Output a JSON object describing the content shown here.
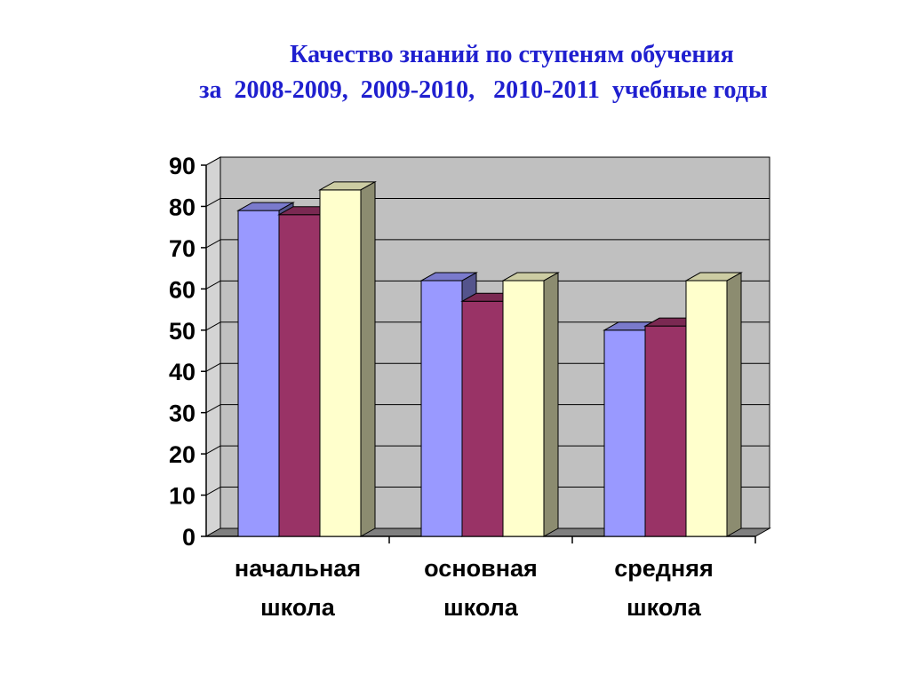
{
  "title": {
    "line1": "Качество знаний по ступеням обучения",
    "line2": "за  2008-2009,  2009-2010,   2010-2011  учебные годы"
  },
  "chart_data": {
    "type": "bar",
    "title": "Качество знаний по ступеням обучения за 2008-2009, 2009-2010, 2010-2011 учебные годы",
    "categories": [
      [
        "начальная",
        "школа"
      ],
      [
        "основная",
        "школа"
      ],
      [
        "средняя",
        "школа"
      ]
    ],
    "series": [
      {
        "values": [
          79,
          62,
          50
        ],
        "color": "#9999ff"
      },
      {
        "values": [
          78,
          57,
          51
        ],
        "color": "#993366"
      },
      {
        "values": [
          84,
          62,
          62
        ],
        "color": "#ffffcc"
      }
    ],
    "ylim": [
      0,
      90
    ],
    "yticks": [
      0,
      10,
      20,
      30,
      40,
      50,
      60,
      70,
      80,
      90
    ],
    "grid": true,
    "style": "3d-clustered-column",
    "legend": "none"
  }
}
